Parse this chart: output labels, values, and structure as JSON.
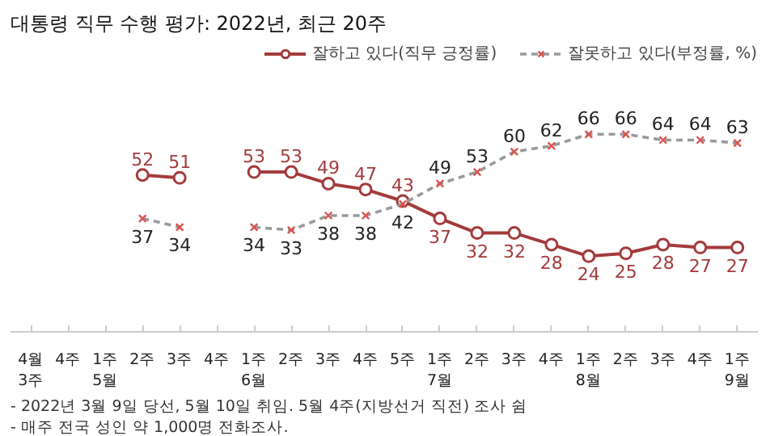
{
  "chart_data": {
    "type": "line",
    "title": "대통령 직무 수행 평가: 2022년, 최근 20주",
    "categories": [
      "4월\n3주",
      "4주",
      "1주\n5월",
      "2주",
      "3주",
      "4주",
      "1주\n6월",
      "2주",
      "3주",
      "4주",
      "5주",
      "1주\n7월",
      "2주",
      "3주",
      "4주",
      "1주\n8월",
      "2주",
      "3주",
      "4주",
      "1주\n9월"
    ],
    "series": [
      {
        "name": "잘하고 있다(직무 긍정률)",
        "color": "#a33b3b",
        "marker": "circle",
        "line_style": "solid",
        "values": [
          null,
          null,
          null,
          52,
          51,
          null,
          53,
          53,
          49,
          47,
          43,
          37,
          32,
          32,
          28,
          24,
          25,
          28,
          27,
          27
        ]
      },
      {
        "name": "잘못하고 있다(부정률, %)",
        "color": "#9a9a9a",
        "marker": "cross",
        "line_style": "dashed",
        "values": [
          null,
          null,
          null,
          37,
          34,
          null,
          34,
          33,
          38,
          38,
          42,
          49,
          53,
          60,
          62,
          66,
          66,
          64,
          64,
          63
        ]
      }
    ],
    "data_labels": true,
    "legend": "top right",
    "grid": false,
    "annotations": [
      "- 2022년 3월 9일 당선, 5월 10일 취임. 5월 4주(지방선거 직전) 조사 쉼",
      "- 매주 전국 성인 약 1,000명 전화조사."
    ]
  }
}
